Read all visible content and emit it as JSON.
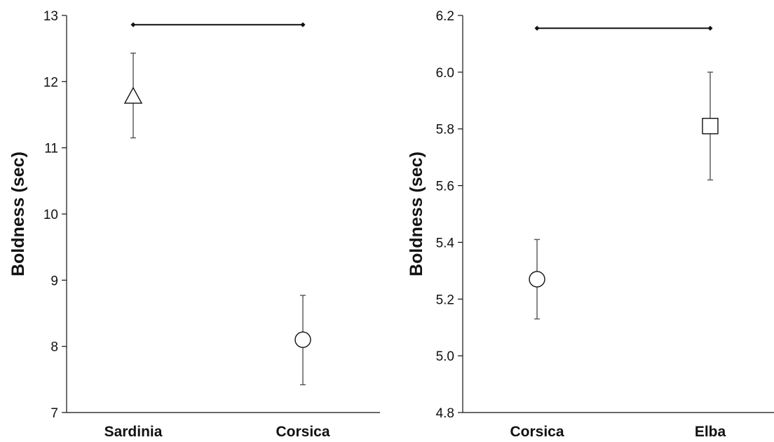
{
  "chart_data": [
    {
      "type": "scatter",
      "ylabel": "Boldness (sec)",
      "ylim": [
        7,
        13
      ],
      "yticks": [
        7,
        8,
        9,
        10,
        11,
        12,
        13
      ],
      "tick_decimals": 0,
      "categories": [
        "Sardinia",
        "Corsica"
      ],
      "points": [
        {
          "category": "Sardinia",
          "mean": 11.78,
          "lower": 11.15,
          "upper": 12.43,
          "marker": "triangle"
        },
        {
          "category": "Corsica",
          "mean": 8.1,
          "lower": 7.42,
          "upper": 8.77,
          "marker": "circle"
        }
      ],
      "significance_bracket": {
        "from": "Sardinia",
        "to": "Corsica",
        "y": 12.86
      }
    },
    {
      "type": "scatter",
      "ylabel": "Boldness (sec)",
      "ylim": [
        4.8,
        6.2
      ],
      "yticks": [
        4.8,
        5.0,
        5.2,
        5.4,
        5.6,
        5.8,
        6.0,
        6.2
      ],
      "tick_decimals": 1,
      "categories": [
        "Corsica",
        "Elba"
      ],
      "points": [
        {
          "category": "Corsica",
          "mean": 5.27,
          "lower": 5.13,
          "upper": 5.41,
          "marker": "circle"
        },
        {
          "category": "Elba",
          "mean": 5.81,
          "lower": 5.62,
          "upper": 6.0,
          "marker": "square"
        }
      ],
      "significance_bracket": {
        "from": "Corsica",
        "to": "Elba",
        "y": 6.155
      }
    }
  ]
}
